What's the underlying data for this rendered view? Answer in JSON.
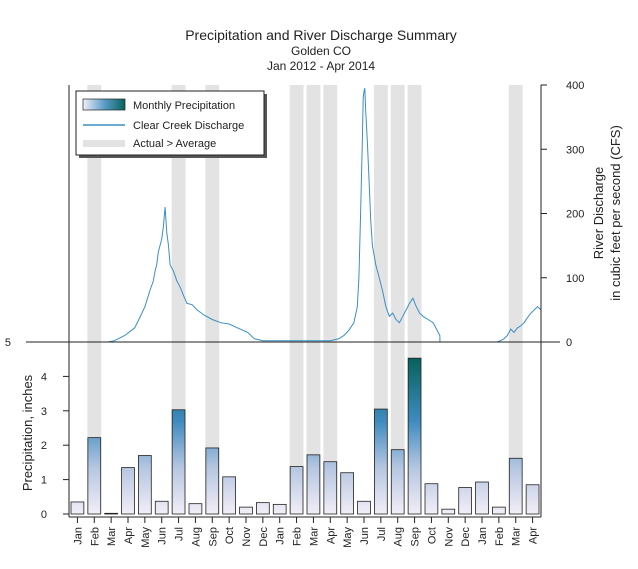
{
  "title": "Precipitation and River Discharge Summary",
  "subtitle_1": "Golden CO",
  "subtitle_2": "Jan 2012 - Apr 2014",
  "legend": {
    "precip": "Monthly Precipitation",
    "discharge": "Clear Creek Discharge",
    "shading": "Actual > Average"
  },
  "colors": {
    "bar_low": "#f2eef6",
    "bar_high": "#0a6660",
    "discharge_line": "#3a8fc4",
    "shading": "#e3e3e3"
  },
  "chart_data": [
    {
      "type": "bar",
      "xlabel": "",
      "ylabel": "Precipitation, inches",
      "ylim": [
        0,
        5
      ],
      "yticks": [
        0,
        1,
        2,
        3,
        4
      ],
      "categories": [
        "Jan",
        "Feb",
        "Mar",
        "Apr",
        "May",
        "Jun",
        "Jul",
        "Aug",
        "Sep",
        "Oct",
        "Nov",
        "Dec",
        "Jan",
        "Feb",
        "Mar",
        "Apr",
        "May",
        "Jun",
        "Jul",
        "Aug",
        "Sep",
        "Oct",
        "Nov",
        "Dec",
        "Jan",
        "Feb",
        "Mar",
        "Apr"
      ],
      "values": [
        0.35,
        2.22,
        0.02,
        1.35,
        1.7,
        0.37,
        3.03,
        0.3,
        1.92,
        1.08,
        0.2,
        0.33,
        0.28,
        1.38,
        1.72,
        1.52,
        1.2,
        0.37,
        3.05,
        1.87,
        4.53,
        0.88,
        0.14,
        0.77,
        0.93,
        0.2,
        1.62,
        0.85
      ],
      "actual_above_average_months": [
        1,
        6,
        8,
        13,
        14,
        15,
        18,
        19,
        20,
        26
      ]
    },
    {
      "type": "line",
      "name": "Clear Creek Discharge",
      "ylabel": "River Discharge in cubic feet per second (CFS)",
      "ylim": [
        0,
        400
      ],
      "yticks": [
        0,
        100,
        200,
        300,
        400
      ],
      "x_unit": "month index (0 = Jan 2012)",
      "x": [
        0,
        1.5,
        2.3,
        2.7,
        3.0,
        3.3,
        3.6,
        3.9,
        4.2,
        4.5,
        4.8,
        5.0,
        5.1,
        5.2,
        5.3,
        5.4,
        5.5,
        5.6,
        5.7,
        5.8,
        5.9,
        6.0,
        6.2,
        6.4,
        6.6,
        6.8,
        7.0,
        7.3,
        7.6,
        8.0,
        8.5,
        9.0,
        9.5,
        10.0,
        10.6,
        11.0,
        11.5,
        12.0,
        13.0,
        14.0,
        15.0,
        15.5,
        16.0,
        16.3,
        16.6,
        16.9,
        17.1,
        17.2,
        17.3,
        17.4,
        17.45,
        17.5,
        17.55,
        17.6,
        17.7,
        17.8,
        17.9,
        18.0,
        18.2,
        18.4,
        18.6,
        18.8,
        19.0,
        19.2,
        19.4,
        19.6,
        19.8,
        20.0,
        20.2,
        20.4,
        20.6,
        20.8,
        21.0,
        21.3,
        21.6,
        21.8,
        22.0,
        22.0,
        23.0,
        24.0,
        25.0,
        25.4,
        25.6,
        25.8,
        26.0,
        26.2,
        26.4,
        26.6,
        26.8,
        27.0,
        27.2,
        27.4,
        27.6,
        27.8,
        28.0
      ],
      "y": [
        0,
        0,
        0,
        2,
        6,
        10,
        16,
        22,
        38,
        55,
        80,
        95,
        110,
        120,
        140,
        150,
        160,
        180,
        210,
        170,
        150,
        120,
        110,
        95,
        85,
        72,
        60,
        58,
        50,
        42,
        35,
        30,
        28,
        22,
        15,
        5,
        2,
        2,
        2,
        2,
        2,
        2,
        5,
        10,
        18,
        30,
        55,
        100,
        200,
        310,
        380,
        390,
        395,
        360,
        310,
        250,
        190,
        150,
        120,
        100,
        80,
        55,
        40,
        45,
        35,
        30,
        40,
        50,
        60,
        68,
        55,
        45,
        40,
        35,
        30,
        20,
        10,
        0,
        0,
        0,
        0,
        0,
        2,
        5,
        10,
        20,
        15,
        22,
        25,
        30,
        38,
        45,
        50,
        55,
        50
      ]
    }
  ]
}
